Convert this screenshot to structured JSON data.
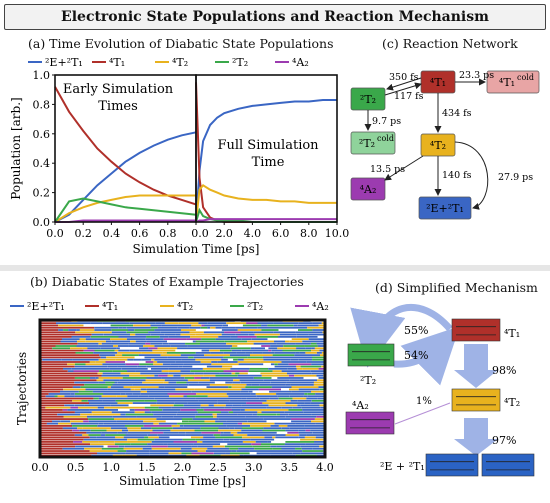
{
  "page": {
    "title": "Electronic State Populations and Reaction Mechanism"
  },
  "panels": {
    "a": {
      "title": "(a) Time Evolution of Diabatic State Populations"
    },
    "b": {
      "title": "(b) Diabatic States of Example Trajectories"
    },
    "c": {
      "title": "(c) Reaction Network"
    },
    "d": {
      "title": "(d) Simplified Mechanism"
    }
  },
  "colors": {
    "E_T1": "#3a66c4",
    "4T1": "#b0302a",
    "4T2": "#e8b21e",
    "2T2": "#3aa84a",
    "4A2": "#9c3bb0",
    "4T1cold": "#e8a5a5",
    "2T2cold": "#8fd39b"
  },
  "chart_data": [
    {
      "type": "line",
      "title": "(a) Time Evolution of Diabatic State Populations",
      "legend": [
        "²E+²T₁",
        "⁴T₁",
        "⁴T₂",
        "²T₂",
        "⁴A₂"
      ],
      "legend_labels": {
        "E_T1": "²E+²T₁",
        "4T1": "⁴T₁",
        "4T2": "⁴T₂",
        "2T2": "²T₂",
        "4A2": "⁴A₂"
      },
      "annotations": [
        "Early Simulation Times",
        "Full Simulation Time"
      ],
      "xlabel": "Simulation Time [ps]",
      "ylabel": "Population [arb.]",
      "ylim": [
        0.0,
        1.0
      ],
      "yticks": [
        "0.0",
        "0.2",
        "0.4",
        "0.6",
        "0.8",
        "1.0"
      ],
      "xticks_early": [
        "0.0",
        "0.2",
        "0.4",
        "0.6",
        "0.8"
      ],
      "xticks_full": [
        "0.0",
        "2.0",
        "4.0",
        "6.0",
        "8.0",
        "10.0"
      ],
      "early": {
        "x": [
          0,
          0.1,
          0.2,
          0.3,
          0.4,
          0.5,
          0.6,
          0.7,
          0.8,
          0.9,
          1.0
        ],
        "series": [
          {
            "name": "²E+²T₁",
            "values": [
              0.0,
              0.05,
              0.15,
              0.25,
              0.33,
              0.41,
              0.47,
              0.52,
              0.56,
              0.59,
              0.61
            ]
          },
          {
            "name": "⁴T₁",
            "values": [
              0.92,
              0.75,
              0.62,
              0.5,
              0.41,
              0.33,
              0.27,
              0.22,
              0.18,
              0.15,
              0.12
            ]
          },
          {
            "name": "⁴T₂",
            "values": [
              0.0,
              0.06,
              0.1,
              0.13,
              0.15,
              0.17,
              0.18,
              0.18,
              0.18,
              0.18,
              0.18
            ]
          },
          {
            "name": "²T₂",
            "values": [
              0.0,
              0.14,
              0.16,
              0.14,
              0.12,
              0.1,
              0.09,
              0.08,
              0.07,
              0.06,
              0.05
            ]
          },
          {
            "name": "⁴A₂",
            "values": [
              0.0,
              0.0,
              0.01,
              0.01,
              0.01,
              0.01,
              0.01,
              0.01,
              0.01,
              0.01,
              0.01
            ]
          }
        ]
      },
      "full": {
        "x": [
          0,
          0.25,
          0.5,
          1,
          1.5,
          2,
          3,
          4,
          5,
          6,
          7,
          8,
          9,
          10
        ],
        "series": [
          {
            "name": "²E+²T₁",
            "values": [
              0.0,
              0.35,
              0.55,
              0.66,
              0.71,
              0.74,
              0.77,
              0.79,
              0.8,
              0.81,
              0.82,
              0.82,
              0.83,
              0.83
            ]
          },
          {
            "name": "⁴T₁",
            "values": [
              0.95,
              0.3,
              0.1,
              0.03,
              0.01,
              0.0,
              0.0,
              0.0,
              0.0,
              0.0,
              0.0,
              0.0,
              0.0,
              0.0
            ]
          },
          {
            "name": "⁴T₂",
            "values": [
              0.0,
              0.22,
              0.25,
              0.22,
              0.2,
              0.18,
              0.16,
              0.15,
              0.15,
              0.14,
              0.14,
              0.13,
              0.13,
              0.13
            ]
          },
          {
            "name": "²T₂",
            "values": [
              0.0,
              0.08,
              0.04,
              0.02,
              0.01,
              0.01,
              0.01,
              0.0,
              0.0,
              0.0,
              0.0,
              0.0,
              0.0,
              0.0
            ]
          },
          {
            "name": "⁴A₂",
            "values": [
              0.0,
              0.01,
              0.01,
              0.02,
              0.02,
              0.02,
              0.02,
              0.02,
              0.02,
              0.02,
              0.02,
              0.02,
              0.02,
              0.02
            ]
          }
        ]
      }
    },
    {
      "type": "heatmap",
      "title": "(b) Diabatic States of Example Trajectories",
      "xlabel": "Simulation Time [ps]",
      "ylabel": "Trajectories",
      "xlim": [
        0.0,
        4.0
      ],
      "xticks": [
        "0.0",
        "0.5",
        "1.0",
        "1.5",
        "2.0",
        "2.5",
        "3.0",
        "3.5",
        "4.0"
      ]
    }
  ],
  "network": {
    "nodes": {
      "4T1": "⁴T₁",
      "4T1cold": "⁴T₁",
      "4T1cold_sup": "cold",
      "2T2": "²T₂",
      "2T2cold": "²T₂",
      "2T2cold_sup": "cold",
      "4T2": "⁴T₂",
      "4A2": "⁴A₂",
      "ET1": "²E+²T₁"
    },
    "rates": [
      "350 fs",
      "117 fs",
      "23.3 ps",
      "434 fs",
      "9.7 ps",
      "13.5 ps",
      "140 fs",
      "27.9 ps"
    ]
  },
  "mechanism": {
    "labels": {
      "4T1": "⁴T₁",
      "2T2": "²T₂",
      "4T2": "⁴T₂",
      "4A2": "⁴A₂",
      "ET1": "²E + ²T₁"
    },
    "percents": [
      "55%",
      "54%",
      "98%",
      "1%",
      "97%"
    ]
  }
}
